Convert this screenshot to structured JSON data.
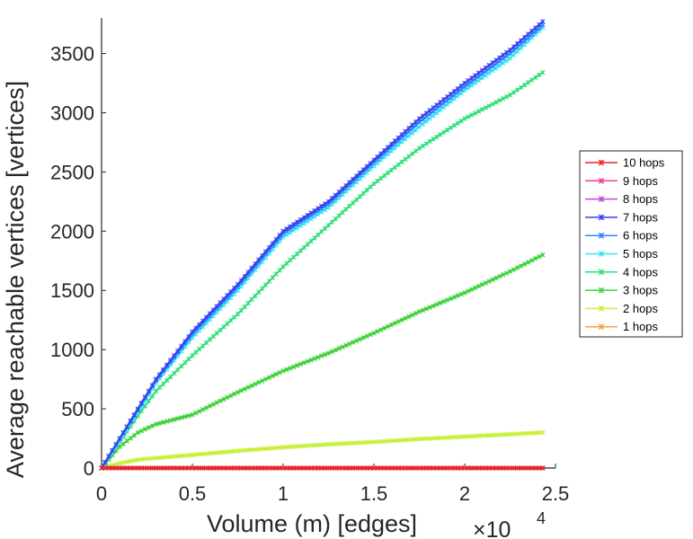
{
  "chart_data": {
    "type": "line",
    "title": "",
    "xlabel": "Volume (m) [edges]",
    "ylabel": "Average reachable vertices [vertices]",
    "x_multiplier_base": "×10",
    "x_multiplier_exp": "4",
    "xlim": [
      0,
      2.5
    ],
    "ylim": [
      0,
      3800
    ],
    "xticks": [
      0,
      0.5,
      1,
      1.5,
      2,
      2.5
    ],
    "xtick_labels": [
      "0",
      "0.5",
      "1",
      "1.5",
      "2",
      "2.5"
    ],
    "yticks": [
      0,
      500,
      1000,
      1500,
      2000,
      2500,
      3000,
      3500
    ],
    "ytick_labels": [
      "0",
      "500",
      "1000",
      "1500",
      "2000",
      "2500",
      "3000",
      "3500"
    ],
    "grid": false,
    "legend_position": "right",
    "x": [
      0,
      0.1,
      0.2,
      0.3,
      0.5,
      0.75,
      1.0,
      1.25,
      1.5,
      1.75,
      2.0,
      2.25,
      2.43
    ],
    "series": [
      {
        "name": "10 hops",
        "color": "#e8252a",
        "values": [
          0,
          0,
          0,
          0,
          0,
          0,
          0,
          0,
          0,
          0,
          0,
          0,
          0
        ]
      },
      {
        "name": "9 hops",
        "color": "#ee3f9e",
        "values": [
          0,
          0,
          0,
          0,
          0,
          0,
          0,
          0,
          0,
          0,
          0,
          0,
          0
        ]
      },
      {
        "name": "8 hops",
        "color": "#b84de0",
        "values": [
          0,
          0,
          0,
          0,
          0,
          0,
          0,
          0,
          0,
          0,
          0,
          0,
          0
        ]
      },
      {
        "name": "7 hops",
        "color": "#3b3ff0",
        "values": [
          0,
          250,
          500,
          750,
          1150,
          1550,
          2000,
          2250,
          2600,
          2950,
          3250,
          3530,
          3770
        ]
      },
      {
        "name": "6 hops",
        "color": "#2f86ff",
        "values": [
          0,
          245,
          490,
          740,
          1130,
          1530,
          1980,
          2230,
          2580,
          2920,
          3220,
          3500,
          3740
        ]
      },
      {
        "name": "5 hops",
        "color": "#34e8f0",
        "values": [
          0,
          230,
          470,
          720,
          1100,
          1500,
          1950,
          2200,
          2550,
          2880,
          3190,
          3460,
          3720
        ]
      },
      {
        "name": "4 hops",
        "color": "#2ee078",
        "values": [
          0,
          220,
          440,
          650,
          950,
          1300,
          1700,
          2050,
          2400,
          2700,
          2950,
          3150,
          3340
        ]
      },
      {
        "name": "3 hops",
        "color": "#3fd23a",
        "values": [
          0,
          180,
          300,
          370,
          450,
          640,
          820,
          970,
          1140,
          1320,
          1480,
          1660,
          1800
        ]
      },
      {
        "name": "2 hops",
        "color": "#c8f03a",
        "values": [
          0,
          40,
          70,
          85,
          110,
          145,
          175,
          200,
          220,
          245,
          265,
          285,
          300
        ]
      },
      {
        "name": "1 hops",
        "color": "#f5a23a",
        "values": [
          0,
          0,
          0,
          0,
          0,
          0,
          0,
          0,
          0,
          0,
          0,
          0,
          0
        ]
      }
    ]
  }
}
